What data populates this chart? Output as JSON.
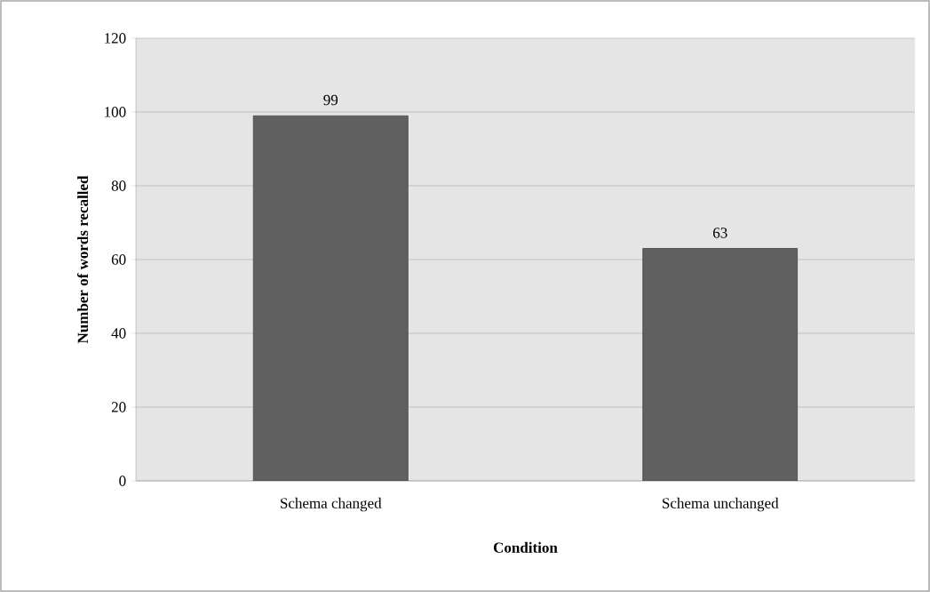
{
  "chart_data": {
    "type": "bar",
    "categories": [
      "Schema changed",
      "Schema unchanged"
    ],
    "values": [
      99,
      63
    ],
    "color": "#606060",
    "xlabel": "Condition",
    "ylabel": "Number of words recalled",
    "ylim": [
      0,
      120
    ],
    "yticks": [
      0,
      20,
      40,
      60,
      80,
      100,
      120
    ],
    "grid": "y",
    "data_labels": true
  }
}
